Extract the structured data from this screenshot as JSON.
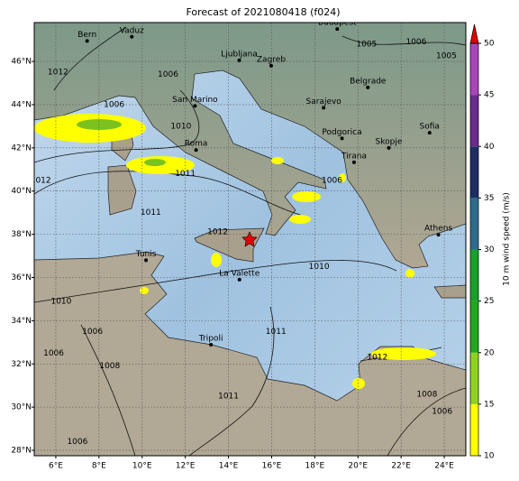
{
  "title": "Forecast of 2021080418 (f024)",
  "map": {
    "lonlim": [
      5,
      25
    ],
    "latlim": [
      27.75,
      47.8
    ],
    "xticks": [
      {
        "value": 6,
        "label": "6°E"
      },
      {
        "value": 8,
        "label": "8°E"
      },
      {
        "value": 10,
        "label": "10°E"
      },
      {
        "value": 12,
        "label": "12°E"
      },
      {
        "value": 14,
        "label": "14°E"
      },
      {
        "value": 16,
        "label": "16°E"
      },
      {
        "value": 18,
        "label": "18°E"
      },
      {
        "value": 20,
        "label": "20°E"
      },
      {
        "value": 22,
        "label": "22°E"
      },
      {
        "value": 24,
        "label": "24°E"
      }
    ],
    "yticks": [
      {
        "value": 28,
        "label": "28°N"
      },
      {
        "value": 30,
        "label": "30°N"
      },
      {
        "value": 32,
        "label": "32°N"
      },
      {
        "value": 34,
        "label": "34°N"
      },
      {
        "value": 36,
        "label": "36°N"
      },
      {
        "value": 38,
        "label": "38°N"
      },
      {
        "value": 40,
        "label": "40°N"
      },
      {
        "value": 42,
        "label": "42°N"
      },
      {
        "value": 44,
        "label": "44°N"
      },
      {
        "value": 46,
        "label": "46°N"
      }
    ],
    "grid": true
  },
  "cities": [
    {
      "name": "Bern",
      "lon": 7.45,
      "lat": 46.95
    },
    {
      "name": "Vaduz",
      "lon": 9.52,
      "lat": 47.14
    },
    {
      "name": "Budapest",
      "lon": 19.04,
      "lat": 47.5
    },
    {
      "name": "Ljubljana",
      "lon": 14.5,
      "lat": 46.05
    },
    {
      "name": "Zagreb",
      "lon": 15.98,
      "lat": 45.8
    },
    {
      "name": "Belgrade",
      "lon": 20.46,
      "lat": 44.8
    },
    {
      "name": "San Marino",
      "lon": 12.45,
      "lat": 43.94
    },
    {
      "name": "Sarajevo",
      "lon": 18.41,
      "lat": 43.86
    },
    {
      "name": "Podgorica",
      "lon": 19.26,
      "lat": 42.44
    },
    {
      "name": "Roma",
      "lon": 12.5,
      "lat": 41.9
    },
    {
      "name": "Sofia",
      "lon": 23.32,
      "lat": 42.7
    },
    {
      "name": "Skopje",
      "lon": 21.43,
      "lat": 42.0
    },
    {
      "name": "Tirana",
      "lon": 19.82,
      "lat": 41.33
    },
    {
      "name": "Athens",
      "lon": 23.73,
      "lat": 37.98
    },
    {
      "name": "Tunis",
      "lon": 10.18,
      "lat": 36.8
    },
    {
      "name": "La Valette",
      "lon": 14.51,
      "lat": 35.9
    },
    {
      "name": "Tripoli",
      "lon": 13.19,
      "lat": 32.89
    }
  ],
  "isobar_labels": [
    {
      "label": "1005",
      "lon": 20.4,
      "lat": 46.8
    },
    {
      "label": "1006",
      "lon": 22.7,
      "lat": 46.9
    },
    {
      "label": "1005",
      "lon": 24.1,
      "lat": 46.25
    },
    {
      "label": "1012",
      "lon": 6.1,
      "lat": 45.5
    },
    {
      "label": "1006",
      "lon": 11.2,
      "lat": 45.4
    },
    {
      "label": "1006",
      "lon": 8.7,
      "lat": 44.0
    },
    {
      "label": "1010",
      "lon": 11.8,
      "lat": 43.0
    },
    {
      "label": "1011",
      "lon": 12.0,
      "lat": 40.8
    },
    {
      "label": "1012",
      "lon": 5.3,
      "lat": 40.5
    },
    {
      "label": "1011",
      "lon": 10.4,
      "lat": 39.0
    },
    {
      "label": "1012",
      "lon": 13.5,
      "lat": 38.1
    },
    {
      "label": "1006",
      "lon": 18.8,
      "lat": 40.5
    },
    {
      "label": "1010",
      "lon": 18.2,
      "lat": 36.5
    },
    {
      "label": "1010",
      "lon": 6.25,
      "lat": 34.9
    },
    {
      "label": "1006",
      "lon": 7.7,
      "lat": 33.5
    },
    {
      "label": "1006",
      "lon": 5.9,
      "lat": 32.5
    },
    {
      "label": "1008",
      "lon": 8.5,
      "lat": 31.9
    },
    {
      "label": "1011",
      "lon": 16.2,
      "lat": 33.5
    },
    {
      "label": "1011",
      "lon": 14.0,
      "lat": 30.5
    },
    {
      "label": "1012",
      "lon": 20.9,
      "lat": 32.3
    },
    {
      "label": "1008",
      "lon": 23.2,
      "lat": 30.6
    },
    {
      "label": "1006",
      "lon": 23.9,
      "lat": 29.8
    },
    {
      "label": "1006",
      "lon": 7.0,
      "lat": 28.4
    }
  ],
  "colorbar": {
    "label": "10 m wind speed (m/s)",
    "lim": [
      10,
      50
    ],
    "ticks": [
      10,
      15,
      20,
      25,
      30,
      35,
      40,
      45,
      50
    ],
    "colors": [
      "#ffff00",
      "#8fd21e",
      "#21a81e",
      "#17a02a",
      "#2e6c8c",
      "#1e2e62",
      "#6a2c8e",
      "#a845b8"
    ],
    "extend_color": "#e00000"
  }
}
